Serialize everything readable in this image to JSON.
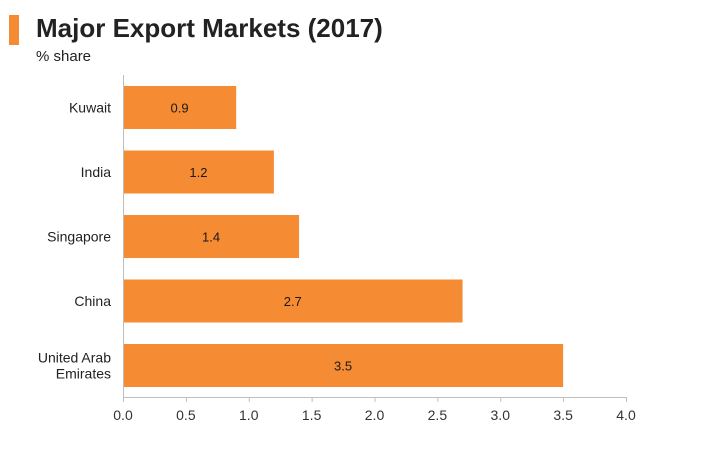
{
  "header": {
    "title": "Major Export Markets (2017)",
    "subtitle": "% share"
  },
  "colors": {
    "accent": "#F58B33",
    "bar": "#F58B33",
    "axis": "#BFBFBF"
  },
  "chart_data": {
    "type": "bar",
    "orientation": "horizontal",
    "title": "Major Export Markets (2017)",
    "subtitle": "% share",
    "categories": [
      "Kuwait",
      "India",
      "Singapore",
      "China",
      "United Arab Emirates"
    ],
    "values": [
      0.9,
      1.2,
      1.4,
      2.7,
      3.5
    ],
    "data_labels": [
      "0.9",
      "1.2",
      "1.4",
      "2.7",
      "3.5"
    ],
    "xlim": [
      0,
      4.0
    ],
    "x_ticks": [
      "0.0",
      "0.5",
      "1.0",
      "1.5",
      "2.0",
      "2.5",
      "3.0",
      "3.5",
      "4.0"
    ],
    "grid": false,
    "legend": "none"
  }
}
